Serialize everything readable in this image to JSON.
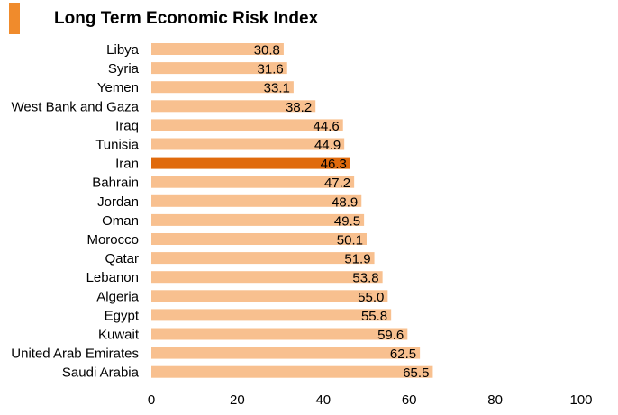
{
  "colors": {
    "bar": "#f8c08f",
    "highlight": "#e06a0c",
    "accent": "#f08b2c"
  },
  "chart_data": {
    "type": "bar",
    "orientation": "horizontal",
    "title": "Long Term Economic Risk Index",
    "categories": [
      "Libya",
      "Syria",
      "Yemen",
      "West Bank and Gaza",
      "Iraq",
      "Tunisia",
      "Iran",
      "Bahrain",
      "Jordan",
      "Oman",
      "Morocco",
      "Qatar",
      "Lebanon",
      "Algeria",
      "Egypt",
      "Kuwait",
      "United Arab Emirates",
      "Saudi Arabia"
    ],
    "values": [
      30.8,
      31.6,
      33.1,
      38.2,
      44.6,
      44.9,
      46.3,
      47.2,
      48.9,
      49.5,
      50.1,
      51.9,
      53.8,
      55.0,
      55.8,
      59.6,
      62.5,
      65.5
    ],
    "value_labels": [
      "30.8",
      "31.6",
      "33.1",
      "38.2",
      "44.6",
      "44.9",
      "46.3",
      "47.2",
      "48.9",
      "49.5",
      "50.1",
      "51.9",
      "53.8",
      "55.0",
      "55.8",
      "59.6",
      "62.5",
      "65.5"
    ],
    "highlight": "Iran",
    "xlim": [
      0,
      100
    ],
    "xticks": [
      0,
      20,
      40,
      60,
      80,
      100
    ],
    "grid": false,
    "legend": "none"
  }
}
